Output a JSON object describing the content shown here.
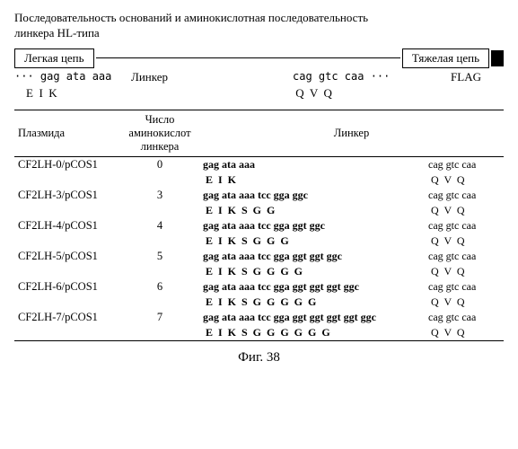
{
  "title_line1": "Последовательность оснований и аминокислотная последовательность",
  "title_line2": "линкера HL-типа",
  "diagram": {
    "light_chain": "Легкая цепь",
    "heavy_chain": "Тяжелая цепь",
    "linker_label": "Линкер",
    "flag_label": "FLAG",
    "left_nt": "··· gag ata aaa",
    "left_aa": "    E  I  K",
    "right_nt": "cag gtc caa ···",
    "right_aa": " Q  V  Q"
  },
  "table": {
    "headers": {
      "plasmid": "Плазмида",
      "count_line1": "Число аминокислот",
      "count_line2": "линкера",
      "linker": "Линкер"
    },
    "rows": [
      {
        "plasmid": "CF2LH-0/pCOS1",
        "count": "0",
        "nt": "gag ata aaa",
        "aa": " E  I  K",
        "tail_nt": "cag gtc caa",
        "tail_aa": " Q  V  Q"
      },
      {
        "plasmid": "CF2LH-3/pCOS1",
        "count": "3",
        "nt": "gag ata aaa tcc gga ggc",
        "aa": " E  I  K  S  G  G",
        "tail_nt": "cag gtc caa",
        "tail_aa": " Q  V  Q"
      },
      {
        "plasmid": "CF2LH-4/pCOS1",
        "count": "4",
        "nt": "gag ata aaa tcc gga ggt ggc",
        "aa": " E  I  K  S  G  G  G",
        "tail_nt": "cag gtc caa",
        "tail_aa": " Q  V  Q"
      },
      {
        "plasmid": "CF2LH-5/pCOS1",
        "count": "5",
        "nt": "gag ata aaa tcc gga ggt ggt ggc",
        "aa": " E  I  K  S  G  G  G  G",
        "tail_nt": "cag gtc caa",
        "tail_aa": " Q  V  Q"
      },
      {
        "plasmid": "CF2LH-6/pCOS1",
        "count": "6",
        "nt": "gag ata aaa tcc gga ggt ggt ggt ggc",
        "aa": " E  I  K  S  G  G  G  G  G",
        "tail_nt": "cag gtc caa",
        "tail_aa": " Q  V  Q"
      },
      {
        "plasmid": "CF2LH-7/pCOS1",
        "count": "7",
        "nt": "gag ata aaa tcc gga ggt ggt ggt ggt ggc",
        "aa": " E  I  K  S  G  G  G  G  G  G",
        "tail_nt": "cag gtc caa",
        "tail_aa": " Q  V  Q"
      }
    ]
  },
  "caption": "Фиг. 38"
}
